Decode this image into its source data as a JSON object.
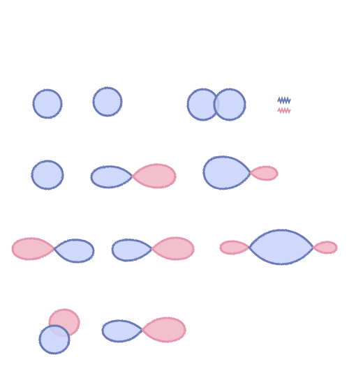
{
  "colors": {
    "positive_fill": "#c7d2fb",
    "positive_outline": "#6a79b6",
    "negative_fill": "#f3b8c8",
    "negative_outline": "#e495ab",
    "background": "#ffffff"
  },
  "legend": {
    "items": [
      {
        "phase": "positive",
        "marker": "scribble"
      },
      {
        "phase": "negative",
        "marker": "scribble"
      }
    ]
  },
  "rows": [
    {
      "items": [
        "s-orbital",
        "s-orbital",
        "s+s-bonding"
      ]
    },
    {
      "items": [
        "s-orbital",
        "p-orbital",
        "sp-hybrid"
      ]
    },
    {
      "items": [
        "p-orbital-reversed",
        "p-orbital",
        "sp-p-sigma-combination"
      ]
    },
    {
      "items": [
        "stacked-s-pair",
        "p-orbital"
      ]
    }
  ]
}
